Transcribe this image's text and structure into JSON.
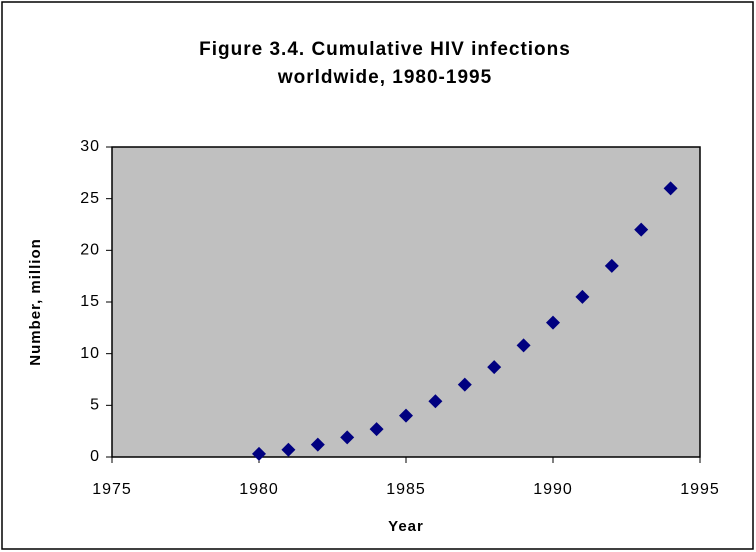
{
  "chart_data": {
    "type": "scatter",
    "title": [
      "Figure 3.4.  Cumulative HIV infections",
      "worldwide, 1980-1995"
    ],
    "xlabel": "Year",
    "ylabel": "Number, million",
    "x": [
      1980,
      1981,
      1982,
      1983,
      1984,
      1985,
      1986,
      1987,
      1988,
      1989,
      1990,
      1991,
      1992,
      1993,
      1994
    ],
    "series": [
      {
        "name": "Cumulative HIV infections",
        "color": "#000080",
        "values": [
          0.3,
          0.7,
          1.2,
          1.9,
          2.7,
          4.0,
          5.4,
          7.0,
          8.7,
          10.8,
          13.0,
          15.5,
          18.5,
          22.0,
          26.0
        ]
      }
    ],
    "xlim": [
      1975,
      1995
    ],
    "xticks": [
      1975,
      1980,
      1985,
      1990,
      1995
    ],
    "ylim": [
      0,
      30
    ],
    "yticks": [
      0,
      5,
      10,
      15,
      20,
      25,
      30
    ],
    "plot_background": "#c0c0c0",
    "grid": false
  }
}
